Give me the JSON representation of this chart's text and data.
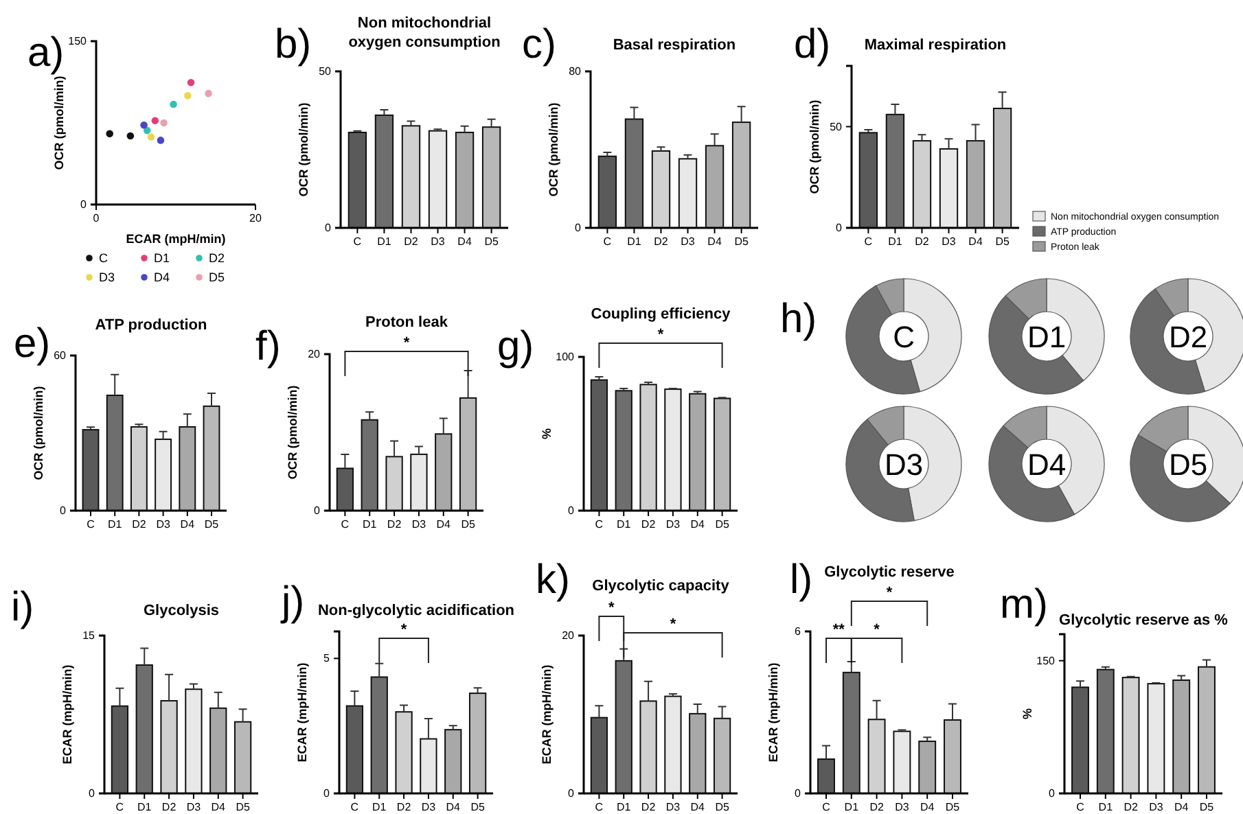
{
  "chart_data": [
    {
      "type": "scatter",
      "xlabel": "ECAR (mpH/min)",
      "ylabel": "OCR (pmol/min)",
      "xlim": [
        0,
        20
      ],
      "xticks": [
        0,
        20
      ],
      "ylim": [
        0,
        150
      ],
      "yticks": [
        0,
        150
      ],
      "marker": "circle",
      "legend": "bottom",
      "annotations": [
        "a)"
      ],
      "series": [
        {
          "name": "C",
          "color": "#111111",
          "x": [
            1.7,
            4.3
          ],
          "values": [
            65,
            63
          ]
        },
        {
          "name": "D1",
          "color": "#e0407a",
          "x": [
            7.4,
            11.9
          ],
          "values": [
            77,
            112
          ]
        },
        {
          "name": "D2",
          "color": "#30c0b0",
          "x": [
            6.4,
            9.7
          ],
          "values": [
            68,
            92
          ]
        },
        {
          "name": "D3",
          "color": "#e8d850",
          "x": [
            6.9,
            11.5
          ],
          "values": [
            62,
            100
          ]
        },
        {
          "name": "D4",
          "color": "#4848c0",
          "x": [
            8.1,
            6
          ],
          "values": [
            59,
            73
          ]
        },
        {
          "name": "D5",
          "color": "#e8a0b0",
          "x": [
            8.5,
            14.1
          ],
          "values": [
            75,
            102
          ]
        }
      ]
    },
    {
      "type": "bar",
      "title": "Non mitochondrial oxygen consumption",
      "ylabel": "OCR (pmol/min)",
      "categories": [
        "C",
        "D1",
        "D2",
        "D3",
        "D4",
        "D5"
      ],
      "values": [
        30.5,
        36,
        32.6,
        31,
        30.5,
        32.2
      ],
      "errors": [
        0.5,
        1.7,
        1.5,
        0.5,
        2,
        2.5
      ],
      "colors": [
        "#5a5a5a",
        "#6e6e6e",
        "#d0d0d0",
        "#e8e8e8",
        "#a8a8a8",
        "#b8b8b8"
      ],
      "ylim": [
        0,
        50
      ],
      "yticks": [
        0,
        50
      ],
      "annotations": [
        "b)"
      ]
    },
    {
      "type": "bar",
      "title": "Basal respiration",
      "ylabel": "OCR (pmol/min)",
      "categories": [
        "C",
        "D1",
        "D2",
        "D3",
        "D4",
        "D5"
      ],
      "values": [
        36.6,
        55.6,
        39.3,
        35.3,
        42,
        54
      ],
      "errors": [
        2,
        6,
        2,
        2,
        6,
        8
      ],
      "colors": [
        "#5a5a5a",
        "#6e6e6e",
        "#d0d0d0",
        "#e8e8e8",
        "#a8a8a8",
        "#b8b8b8"
      ],
      "ylim": [
        0,
        80
      ],
      "yticks": [
        0,
        80
      ],
      "annotations": [
        "c)"
      ]
    },
    {
      "type": "bar",
      "title": "Maximal respiration",
      "ylabel": "OCR (pmol/min)",
      "categories": [
        "C",
        "D1",
        "D2",
        "D3",
        "D4",
        "D5"
      ],
      "values": [
        47,
        56,
        43,
        39,
        43,
        59
      ],
      "errors": [
        1.5,
        5,
        3,
        5,
        8,
        8
      ],
      "colors": [
        "#5a5a5a",
        "#6e6e6e",
        "#d0d0d0",
        "#e8e8e8",
        "#a8a8a8",
        "#b8b8b8"
      ],
      "ylim": [
        0,
        80
      ],
      "yticks": [
        0,
        50
      ],
      "annotations": [
        "d)"
      ]
    },
    {
      "type": "bar",
      "title": "ATP production",
      "ylabel": "OCR (pmol/min)",
      "categories": [
        "C",
        "D1",
        "D2",
        "D3",
        "D4",
        "D5"
      ],
      "values": [
        31.3,
        44.6,
        32.4,
        27.6,
        32.4,
        40.4
      ],
      "errors": [
        1,
        8,
        1,
        3,
        5,
        5
      ],
      "colors": [
        "#5a5a5a",
        "#6e6e6e",
        "#d0d0d0",
        "#e8e8e8",
        "#a8a8a8",
        "#b8b8b8"
      ],
      "ylim": [
        0,
        60
      ],
      "yticks": [
        0,
        60
      ],
      "annotations": [
        "e)"
      ]
    },
    {
      "type": "bar",
      "title": "Proton leak",
      "ylabel": "OCR (pmol/min)",
      "categories": [
        "C",
        "D1",
        "D2",
        "D3",
        "D4",
        "D5"
      ],
      "values": [
        5.4,
        11.6,
        6.9,
        7.2,
        9.8,
        14.4
      ],
      "errors": [
        1.8,
        1,
        2,
        1,
        2,
        3.5
      ],
      "colors": [
        "#5a5a5a",
        "#6e6e6e",
        "#d0d0d0",
        "#e8e8e8",
        "#a8a8a8",
        "#b8b8b8"
      ],
      "ylim": [
        0,
        20
      ],
      "yticks": [
        0,
        20
      ],
      "annotations": [
        "f)",
        "*"
      ]
    },
    {
      "type": "bar",
      "title": "Coupling efficiency",
      "ylabel": "%",
      "categories": [
        "C",
        "D1",
        "D2",
        "D3",
        "D4",
        "D5"
      ],
      "values": [
        85,
        78,
        82,
        79,
        76,
        73
      ],
      "errors": [
        2,
        1.5,
        1.5,
        0.5,
        1.5,
        0.5
      ],
      "colors": [
        "#5a5a5a",
        "#6e6e6e",
        "#d0d0d0",
        "#e8e8e8",
        "#a8a8a8",
        "#b8b8b8"
      ],
      "ylim": [
        0,
        100
      ],
      "yticks": [
        0,
        100
      ],
      "annotations": [
        "g)",
        "*"
      ]
    },
    {
      "type": "donut",
      "title": "C",
      "categories": [
        "Non mitochondrial oxygen consumption",
        "ATP production",
        "Proton leak"
      ],
      "values": [
        45.5,
        46.5,
        8
      ],
      "colors": [
        "#e6e6e6",
        "#6a6a6a",
        "#9a9a9a"
      ],
      "legend": "top",
      "annotations": [
        "h)"
      ]
    },
    {
      "type": "donut",
      "title": "D1",
      "categories": [
        null,
        null,
        null
      ],
      "values": [
        39,
        48.4,
        12.6
      ],
      "colors": [
        "#e6e6e6",
        "#6a6a6a",
        "#9a9a9a"
      ]
    },
    {
      "type": "donut",
      "title": "D2",
      "categories": [
        null,
        null,
        null
      ],
      "values": [
        45.3,
        45.1,
        9.6
      ],
      "colors": [
        "#e6e6e6",
        "#6a6a6a",
        "#9a9a9a"
      ]
    },
    {
      "type": "donut",
      "title": "D3",
      "categories": [
        null,
        null,
        null
      ],
      "values": [
        47.1,
        42,
        10.9
      ],
      "colors": [
        "#e6e6e6",
        "#6a6a6a",
        "#9a9a9a"
      ]
    },
    {
      "type": "donut",
      "title": "D4",
      "categories": [
        null,
        null,
        null
      ],
      "values": [
        42,
        44.5,
        13.5
      ],
      "colors": [
        "#e6e6e6",
        "#6a6a6a",
        "#9a9a9a"
      ]
    },
    {
      "type": "donut",
      "title": "D5",
      "categories": [
        null,
        null,
        null
      ],
      "values": [
        37,
        46.4,
        16.6
      ],
      "colors": [
        "#e6e6e6",
        "#6a6a6a",
        "#9a9a9a"
      ]
    },
    {
      "type": "bar",
      "title": "Glycolysis",
      "ylabel": "ECAR (mpH/min)",
      "categories": [
        "C",
        "D1",
        "D2",
        "D3",
        "D4",
        "D5"
      ],
      "values": [
        8.3,
        12.2,
        8.8,
        9.9,
        8.1,
        6.8
      ],
      "errors": [
        1.7,
        1.6,
        2.5,
        0.5,
        1.5,
        1.2
      ],
      "colors": [
        "#5a5a5a",
        "#6e6e6e",
        "#d0d0d0",
        "#e8e8e8",
        "#a8a8a8",
        "#b8b8b8"
      ],
      "ylim": [
        0,
        15
      ],
      "yticks": [
        0,
        15
      ],
      "annotations": [
        "i)"
      ]
    },
    {
      "type": "bar",
      "title": "Non-glycolytic acidification",
      "ylabel": "ECAR (mpH/min)",
      "categories": [
        "C",
        "D1",
        "D2",
        "D3",
        "D4",
        "D5"
      ],
      "values": [
        3.24,
        4.31,
        3.02,
        2.02,
        2.36,
        3.71
      ],
      "errors": [
        0.55,
        0.5,
        0.25,
        0.75,
        0.15,
        0.2
      ],
      "colors": [
        "#5a5a5a",
        "#6e6e6e",
        "#d0d0d0",
        "#e8e8e8",
        "#a8a8a8",
        "#b8b8b8"
      ],
      "ylim": [
        0,
        6
      ],
      "yticks": [
        0,
        5
      ],
      "annotations": [
        "j)",
        "*"
      ]
    },
    {
      "type": "bar",
      "title": "Glycolytic capacity",
      "ylabel": "ECAR (mpH/min)",
      "categories": [
        "C",
        "D1",
        "D2",
        "D3",
        "D4",
        "D5"
      ],
      "values": [
        9.6,
        16.8,
        11.7,
        12.3,
        10.1,
        9.5
      ],
      "errors": [
        1.5,
        1.5,
        2.5,
        0.3,
        1.2,
        1.5
      ],
      "colors": [
        "#5a5a5a",
        "#6e6e6e",
        "#d0d0d0",
        "#e8e8e8",
        "#a8a8a8",
        "#b8b8b8"
      ],
      "ylim": [
        0,
        20
      ],
      "yticks": [
        0,
        20
      ],
      "annotations": [
        "k)",
        "*",
        "*"
      ]
    },
    {
      "type": "bar",
      "title": "Glycolytic reserve",
      "ylabel": "ECAR (mpH/min)",
      "categories": [
        "C",
        "D1",
        "D2",
        "D3",
        "D4",
        "D5"
      ],
      "values": [
        1.27,
        4.48,
        2.74,
        2.3,
        1.93,
        2.72
      ],
      "errors": [
        0.5,
        0.4,
        0.7,
        0.05,
        0.15,
        0.6
      ],
      "colors": [
        "#5a5a5a",
        "#6e6e6e",
        "#d0d0d0",
        "#e8e8e8",
        "#a8a8a8",
        "#b8b8b8"
      ],
      "ylim": [
        0,
        6
      ],
      "yticks": [
        0,
        6
      ],
      "annotations": [
        "l)",
        "**",
        "*",
        "*"
      ]
    },
    {
      "type": "bar",
      "title": "Glycolytic reserve as %",
      "ylabel": "%",
      "categories": [
        "C",
        "D1",
        "D2",
        "D3",
        "D4",
        "D5"
      ],
      "values": [
        120,
        140,
        131,
        124,
        128,
        143
      ],
      "errors": [
        7,
        3,
        1,
        1,
        5,
        8
      ],
      "colors": [
        "#5a5a5a",
        "#6e6e6e",
        "#d0d0d0",
        "#e8e8e8",
        "#a8a8a8",
        "#b8b8b8"
      ],
      "ylim": [
        0,
        180
      ],
      "yticks": [
        0,
        150
      ],
      "annotations": [
        "m)"
      ]
    }
  ]
}
